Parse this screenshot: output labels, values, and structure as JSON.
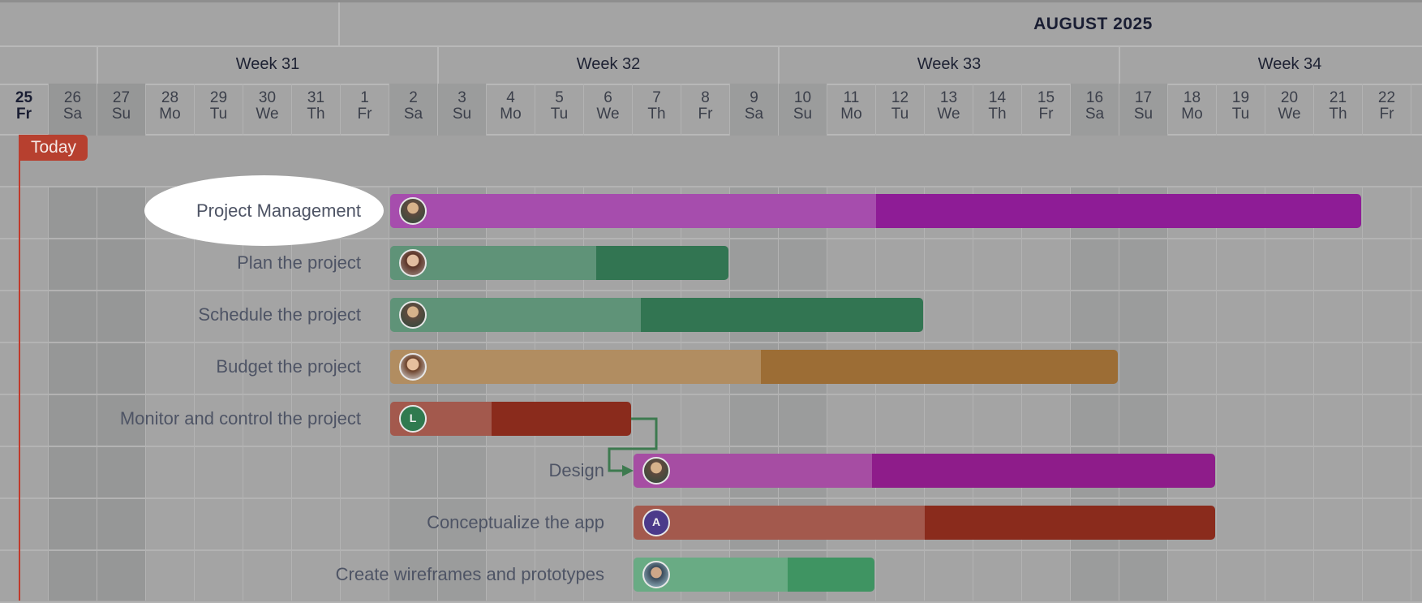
{
  "header": {
    "month": "AUGUST 2025",
    "weeks": [
      "Week 31",
      "Week 32",
      "Week 33",
      "Week 34"
    ],
    "days": [
      {
        "num": "25",
        "dow": "Fr",
        "weekend": false,
        "today": true
      },
      {
        "num": "26",
        "dow": "Sa",
        "weekend": true
      },
      {
        "num": "27",
        "dow": "Su",
        "weekend": true
      },
      {
        "num": "28",
        "dow": "Mo",
        "weekend": false
      },
      {
        "num": "29",
        "dow": "Tu",
        "weekend": false
      },
      {
        "num": "30",
        "dow": "We",
        "weekend": false
      },
      {
        "num": "31",
        "dow": "Th",
        "weekend": false
      },
      {
        "num": "1",
        "dow": "Fr",
        "weekend": false
      },
      {
        "num": "2",
        "dow": "Sa",
        "weekend": true
      },
      {
        "num": "3",
        "dow": "Su",
        "weekend": true
      },
      {
        "num": "4",
        "dow": "Mo",
        "weekend": false
      },
      {
        "num": "5",
        "dow": "Tu",
        "weekend": false
      },
      {
        "num": "6",
        "dow": "We",
        "weekend": false
      },
      {
        "num": "7",
        "dow": "Th",
        "weekend": false
      },
      {
        "num": "8",
        "dow": "Fr",
        "weekend": false
      },
      {
        "num": "9",
        "dow": "Sa",
        "weekend": true
      },
      {
        "num": "10",
        "dow": "Su",
        "weekend": true
      },
      {
        "num": "11",
        "dow": "Mo",
        "weekend": false
      },
      {
        "num": "12",
        "dow": "Tu",
        "weekend": false
      },
      {
        "num": "13",
        "dow": "We",
        "weekend": false
      },
      {
        "num": "14",
        "dow": "Th",
        "weekend": false
      },
      {
        "num": "15",
        "dow": "Fr",
        "weekend": false
      },
      {
        "num": "16",
        "dow": "Sa",
        "weekend": true
      },
      {
        "num": "17",
        "dow": "Su",
        "weekend": true
      },
      {
        "num": "18",
        "dow": "Mo",
        "weekend": false
      },
      {
        "num": "19",
        "dow": "Tu",
        "weekend": false
      },
      {
        "num": "20",
        "dow": "We",
        "weekend": false
      },
      {
        "num": "21",
        "dow": "Th",
        "weekend": false
      },
      {
        "num": "22",
        "dow": "Fr",
        "weekend": false
      }
    ]
  },
  "today_label": "Today",
  "tasks": [
    {
      "name": "Project Management",
      "start": "2",
      "end": "21",
      "progress": 0.5,
      "color": "#8e1c96",
      "avatar": "photo",
      "highlighted": true
    },
    {
      "name": "Plan the project",
      "start": "2",
      "end": "8",
      "progress": 0.61,
      "color": "#327552",
      "avatar": "photo2"
    },
    {
      "name": "Schedule the project",
      "start": "2",
      "end": "12",
      "progress": 0.47,
      "color": "#327552",
      "avatar": "photo"
    },
    {
      "name": "Budget the project",
      "start": "2",
      "end": "16",
      "progress": 0.51,
      "color": "#9c6d35",
      "avatar": "photo3"
    },
    {
      "name": "Monitor and control the project",
      "start": "2",
      "end": "6",
      "progress": 0.42,
      "color": "#8a2b1c",
      "avatar": "letter",
      "avatar_letter": "L",
      "avatar_color": "#2f7a4f"
    },
    {
      "name": "Design",
      "start": "7",
      "end": "18",
      "progress": 0.41,
      "color": "#8e1c8a",
      "avatar": "photo"
    },
    {
      "name": "Conceptualize the app",
      "start": "7",
      "end": "18",
      "progress": 0.5,
      "color": "#8a2b1c",
      "avatar": "letter",
      "avatar_letter": "A",
      "avatar_color": "#4b3a8a"
    },
    {
      "name": "Create wireframes and prototypes",
      "start": "7",
      "end": "11",
      "progress": 0.64,
      "color": "#3f9462",
      "avatar": "photo4"
    }
  ],
  "dependency": {
    "from": "Monitor and control the project",
    "to": "Design",
    "color": "#3d7a4f"
  }
}
